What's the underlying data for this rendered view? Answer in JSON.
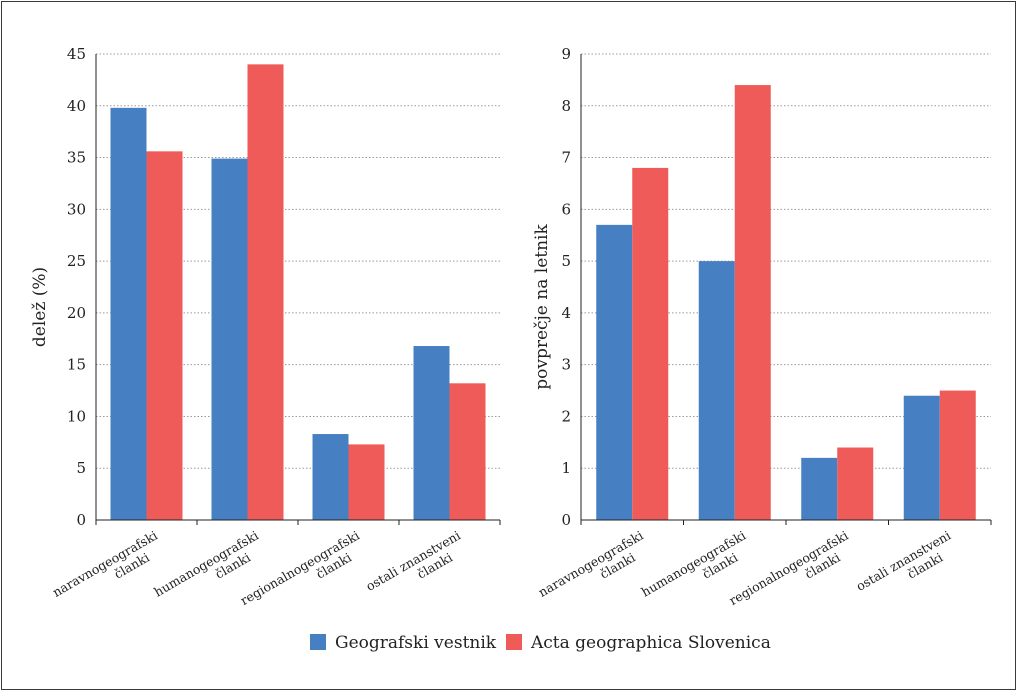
{
  "colors": {
    "series0": "#4680c2",
    "series1": "#ef5b58",
    "grid": "#999999",
    "axis": "#222222"
  },
  "chart_data": [
    {
      "type": "bar",
      "ylabel": "delež (%)",
      "ylim": [
        0,
        45
      ],
      "yticks": [
        "0",
        "5",
        "10",
        "15",
        "20",
        "25",
        "30",
        "35",
        "40",
        "45"
      ],
      "grid": true,
      "categories": [
        [
          "naravnogeografski",
          "članki"
        ],
        [
          "humanogeografski",
          "članki"
        ],
        [
          "regionalnogeografski",
          "članki"
        ],
        [
          "ostali znanstveni",
          "članki"
        ]
      ],
      "series": [
        {
          "name": "Geografski vestnik",
          "values": [
            39.8,
            34.9,
            8.3,
            16.8
          ]
        },
        {
          "name": "Acta geographica Slovenica",
          "values": [
            35.6,
            44.0,
            7.3,
            13.2
          ]
        }
      ]
    },
    {
      "type": "bar",
      "ylabel": "povprečje na letnik",
      "ylim": [
        0,
        9
      ],
      "yticks": [
        "0",
        "1",
        "2",
        "3",
        "4",
        "5",
        "6",
        "7",
        "8",
        "9"
      ],
      "grid": true,
      "categories": [
        [
          "naravnogeografski",
          "članki"
        ],
        [
          "humanogeografski",
          "članki"
        ],
        [
          "regionalnogeografski",
          "članki"
        ],
        [
          "ostali znanstveni",
          "članki"
        ]
      ],
      "series": [
        {
          "name": "Geografski vestnik",
          "values": [
            5.7,
            5.0,
            1.2,
            2.4
          ]
        },
        {
          "name": "Acta geographica Slovenica",
          "values": [
            6.8,
            8.4,
            1.4,
            2.5
          ]
        }
      ]
    }
  ],
  "legend": {
    "position": "bottom-center",
    "items": [
      {
        "label": "Geografski vestnik"
      },
      {
        "label": "Acta geographica Slovenica"
      }
    ]
  }
}
